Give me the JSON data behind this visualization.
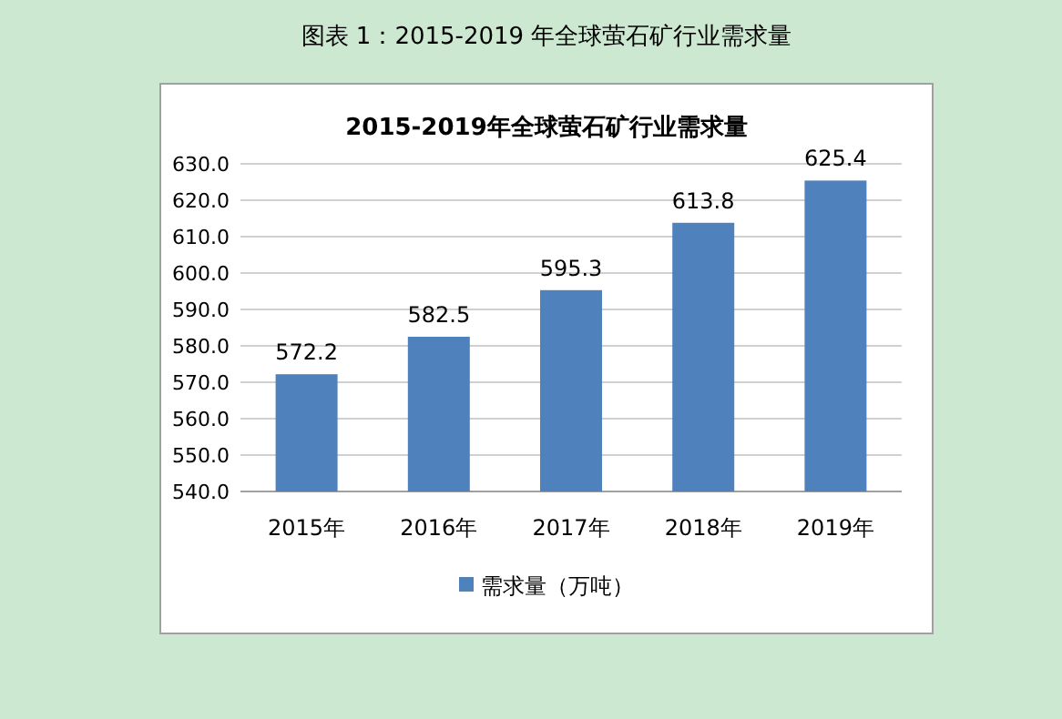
{
  "chart_data": {
    "type": "bar",
    "title": "图表 1：2015-2019 年全球萤石矿行业需求量",
    "subtitle": "2015-2019年全球萤石矿行业需求量",
    "categories": [
      "2015年",
      "2016年",
      "2017年",
      "2018年",
      "2019年"
    ],
    "series": [
      {
        "name": "需求量（万吨）",
        "color": "#4f81bd",
        "values": [
          572.2,
          582.5,
          595.3,
          613.8,
          625.4
        ]
      }
    ],
    "ylim": [
      540,
      630
    ],
    "yticks": [
      {
        "value": 540,
        "label": "540.0"
      },
      {
        "value": 550,
        "label": "550.0"
      },
      {
        "value": 560,
        "label": "560.0"
      },
      {
        "value": 570,
        "label": "570.0"
      },
      {
        "value": 580,
        "label": "580.0"
      },
      {
        "value": 590,
        "label": "590.0"
      },
      {
        "value": 600,
        "label": "600.0"
      },
      {
        "value": 610,
        "label": "610.0"
      },
      {
        "value": 620,
        "label": "620.0"
      },
      {
        "value": 630,
        "label": "630.0"
      }
    ],
    "grid": "y",
    "legend": "bottom",
    "data_labels": true
  }
}
